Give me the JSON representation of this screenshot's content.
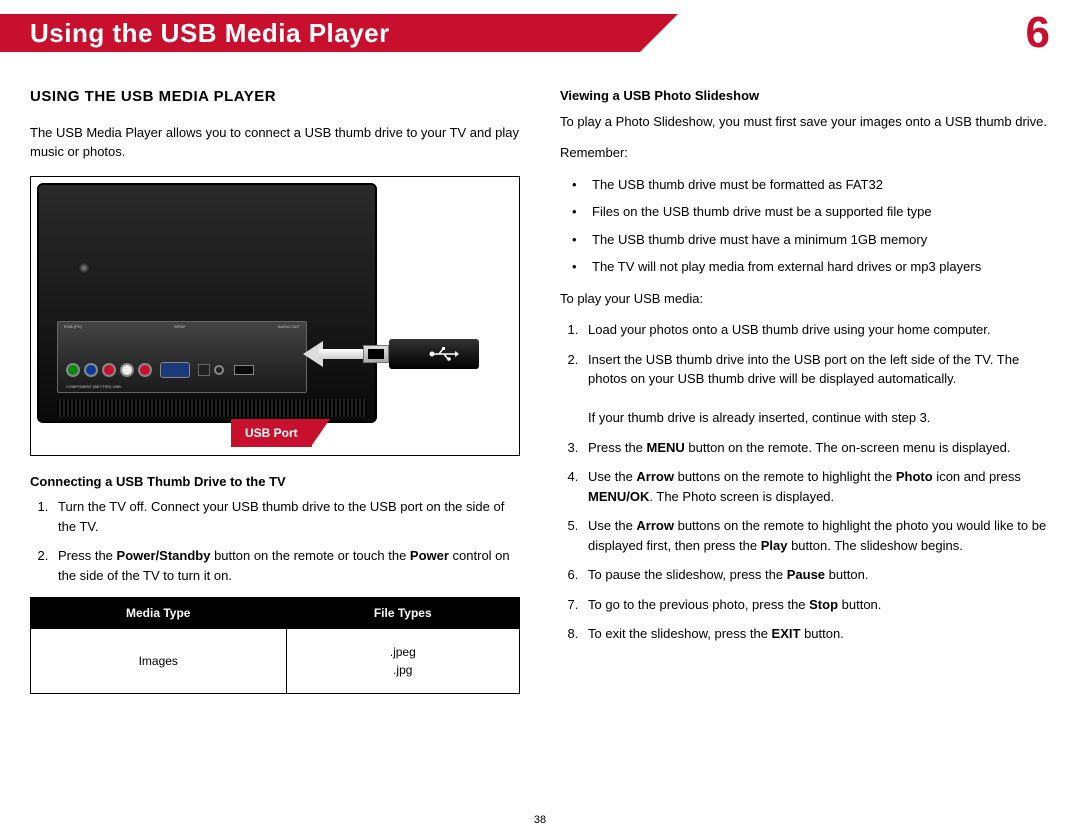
{
  "header": {
    "title": "Using the USB Media Player",
    "chapter": "6"
  },
  "left": {
    "heading": "USING THE USB MEDIA PLAYER",
    "intro": "The USB Media Player allows you to connect a USB thumb drive to your TV and play music or photos.",
    "figure": {
      "port_labels": [
        "RGB (PC)",
        "SPDIF",
        "AUDIO OUT"
      ],
      "bottom_label": "COMPONENT (BETTER)          USB",
      "callout": "USB Port"
    },
    "connect_heading": "Connecting a USB Thumb Drive to the TV",
    "connect_steps": [
      "Turn the TV off. Connect your USB thumb drive to the USB port on the side of the TV.",
      "Press the <b>Power/Standby</b> button on the remote or touch the <b>Power</b> control on the side of the TV to turn it on."
    ],
    "table": {
      "headers": [
        "Media Type",
        "File Types"
      ],
      "row": [
        "Images",
        ".jpeg<br>.jpg"
      ]
    }
  },
  "right": {
    "view_heading": "Viewing a USB Photo Slideshow",
    "view_intro": "To play a Photo Slideshow, you must first save your images onto a USB thumb drive.",
    "remember_label": "Remember:",
    "remember": [
      "The USB thumb drive must be formatted as FAT32",
      "Files on the USB thumb drive must be a supported file type",
      "The USB thumb drive must have a minimum 1GB memory",
      "The TV will not play media from external hard drives or mp3 players"
    ],
    "play_label": "To play your USB media:",
    "play_steps": [
      "Load your photos onto a USB thumb drive using your home computer.",
      "Insert the USB thumb drive into the USB port on the left side of the TV. The photos on your USB thumb drive will be displayed automatically.<br><br>If your thumb drive is already inserted, continue with step 3.",
      "Press the <b>MENU</b> button on the remote. The on-screen menu is displayed.",
      "Use the <b>Arrow</b> buttons on the remote to highlight the <b>Photo</b> icon and press <b>MENU/OK</b>. The Photo screen is displayed.",
      "Use the <b>Arrow</b> buttons on the remote to highlight the photo you would like to be displayed first, then press the <b>Play</b> button. The slideshow begins.",
      "To pause the slideshow, press the <b>Pause</b> button.",
      "To go to the previous photo, press the <b>Stop</b> button.",
      "To exit the slideshow, press the <b>EXIT</b> button."
    ]
  },
  "page_number": "38"
}
